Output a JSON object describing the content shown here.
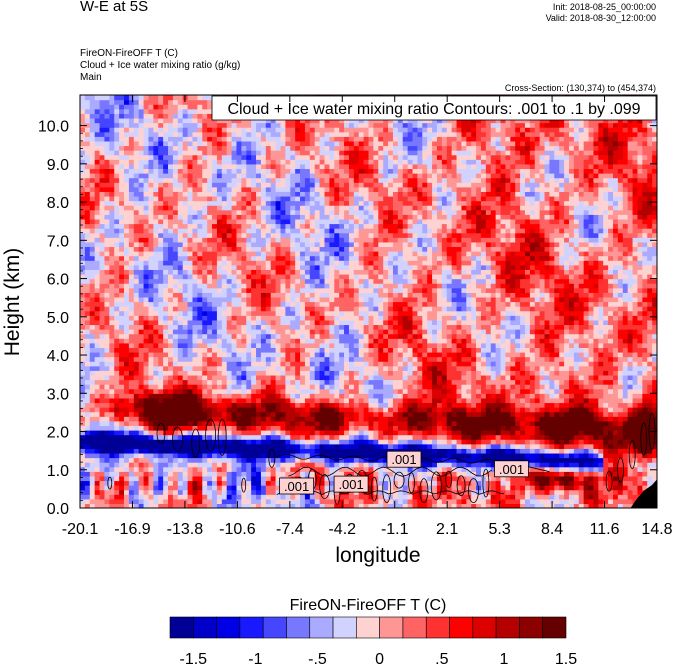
{
  "header": {
    "title": "W-E at 5S",
    "init": "Init: 2018-08-25_00:00:00",
    "valid": "Valid: 2018-08-30_12:00:00",
    "field_lines": [
      "FireON-FireOFF T   (C)",
      "Cloud + Ice water mixing ratio   (g/kg)",
      "Main"
    ],
    "cross_section": "Cross-Section: (130,374) to (454,374)"
  },
  "chart_data": {
    "type": "heatmap",
    "contour_info": "Cloud + Ice water mixing ratio Contours: .001 to .1 by .099",
    "xlabel": "longitude",
    "ylabel": "Height (km)",
    "xlim": [
      -20.1,
      14.8
    ],
    "ylim": [
      0,
      10.8
    ],
    "x_ticks": [
      "-20.1",
      "-16.9",
      "-13.8",
      "-10.6",
      "-7.4",
      "-4.2",
      "-1.1",
      "2.1",
      "5.3",
      "8.4",
      "11.6",
      "14.8"
    ],
    "y_ticks": [
      "0.0",
      "1.0",
      "2.0",
      "3.0",
      "4.0",
      "5.0",
      "6.0",
      "7.0",
      "8.0",
      "9.0",
      "10.0"
    ],
    "contour_labels": [
      {
        "text": ".001",
        "x": -7.0,
        "y": 0.55
      },
      {
        "text": ".001",
        "x": -3.7,
        "y": 0.6
      },
      {
        "text": ".001",
        "x": -0.5,
        "y": 1.25
      },
      {
        "text": ".001",
        "x": 6.0,
        "y": 1.0
      }
    ],
    "colorbar": {
      "title": "FireON-FireOFF T  (C)",
      "tick_labels": [
        "-1.5",
        "-1",
        "-.5",
        "0",
        ".5",
        "1",
        "1.5"
      ],
      "colors": [
        "#000096",
        "#0000c8",
        "#0000e6",
        "#1919ff",
        "#4646ff",
        "#7878ff",
        "#aaaaff",
        "#d2d2ff",
        "#ffd2d2",
        "#ff9696",
        "#ff6464",
        "#ff3232",
        "#ff0000",
        "#dc0000",
        "#b40000",
        "#8c0000",
        "#640000"
      ]
    }
  }
}
